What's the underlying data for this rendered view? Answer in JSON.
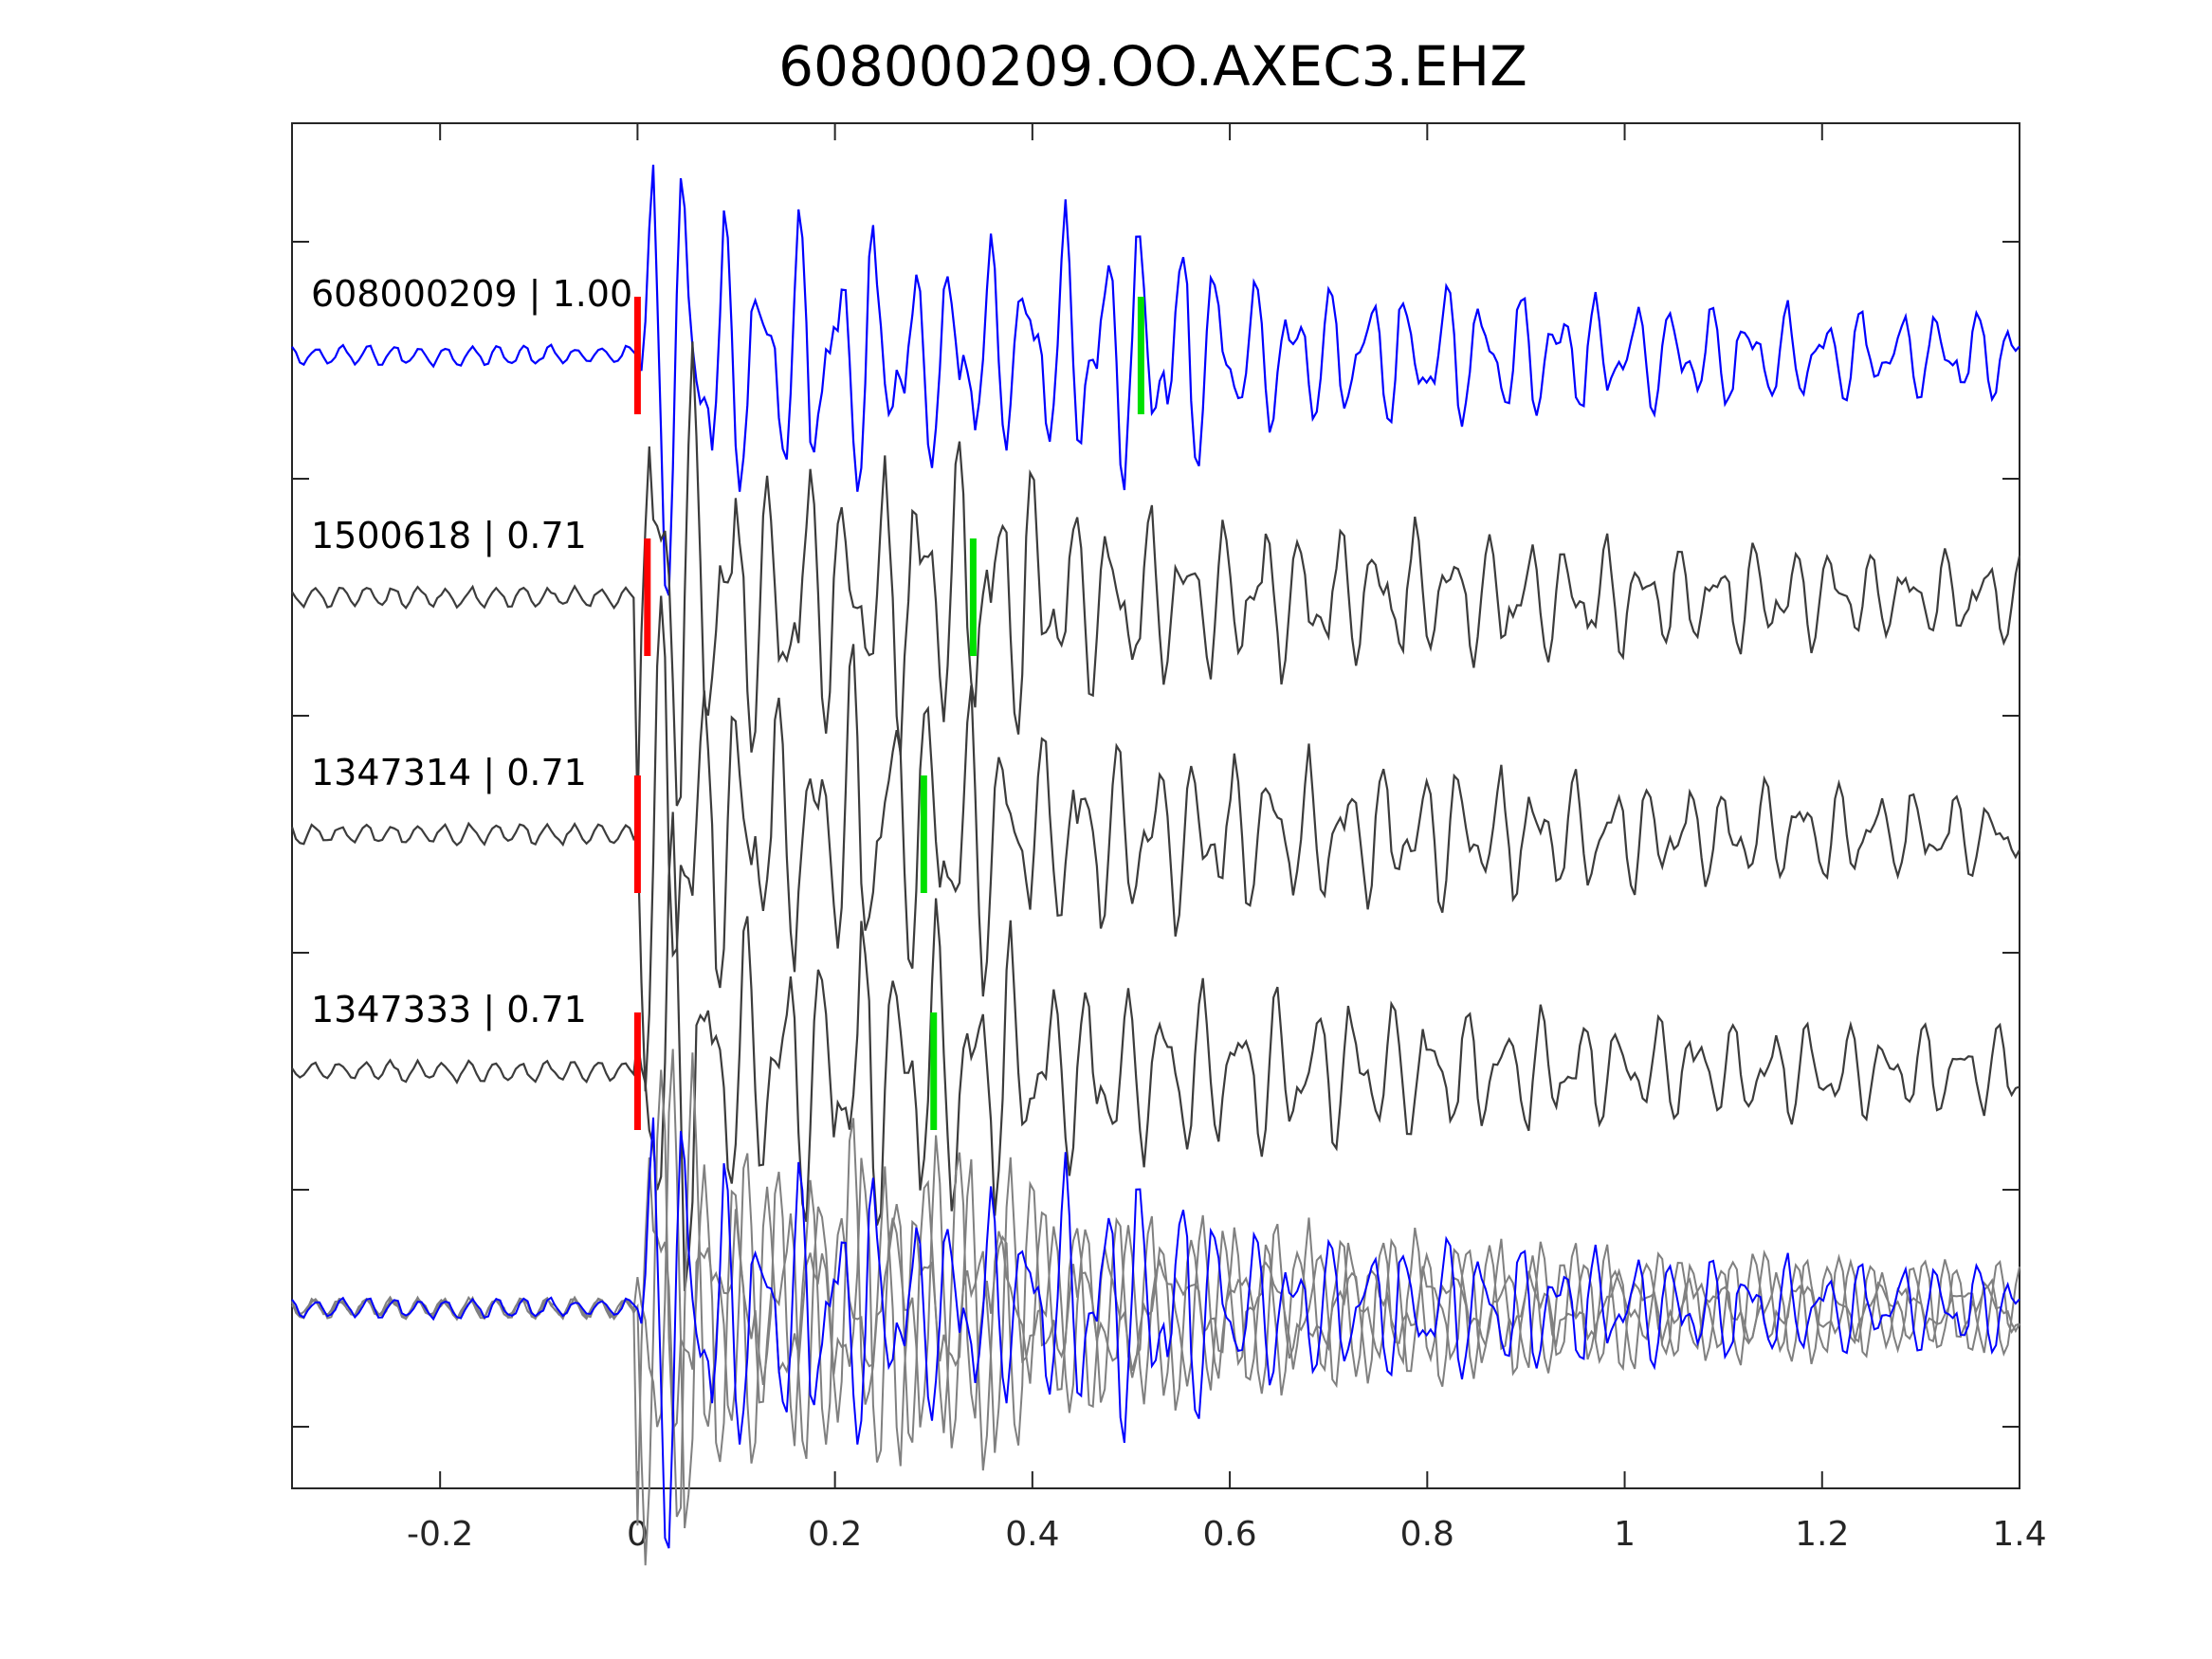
{
  "chart_data": {
    "type": "line",
    "title": "608000209.OO.AXEC3.EHZ",
    "xlabel": "",
    "ylabel": "",
    "xlim": [
      -0.35,
      1.4
    ],
    "x_ticks": [
      -0.2,
      0,
      0.2,
      0.4,
      0.6,
      0.8,
      1,
      1.2,
      1.4
    ],
    "x_tick_labels": [
      "-0.2",
      "0",
      "0.2",
      "0.4",
      "0.6",
      "0.8",
      "1",
      "1.2",
      "1.4"
    ],
    "grid": false,
    "legend": false,
    "colors": {
      "master": "#0000ff",
      "template": "#3c3c3c",
      "overlay_template": "#808080",
      "p_pick": "#ff0000",
      "s_pick": "#00e000",
      "axes": "#262626"
    },
    "series": [
      {
        "label": "608000209 | 1.00",
        "role": "master",
        "p_pick": 0.0,
        "s_pick": 0.51
      },
      {
        "label": "1500618 | 0.71",
        "role": "template",
        "p_pick": 0.01,
        "s_pick": 0.34
      },
      {
        "label": "1347314 | 0.71",
        "role": "template",
        "p_pick": 0.0,
        "s_pick": 0.29
      },
      {
        "label": "1347333 | 0.71",
        "role": "template",
        "p_pick": 0.0,
        "s_pick": 0.3
      }
    ],
    "overlay_panel": "aligned overlay of master and template waveforms"
  }
}
